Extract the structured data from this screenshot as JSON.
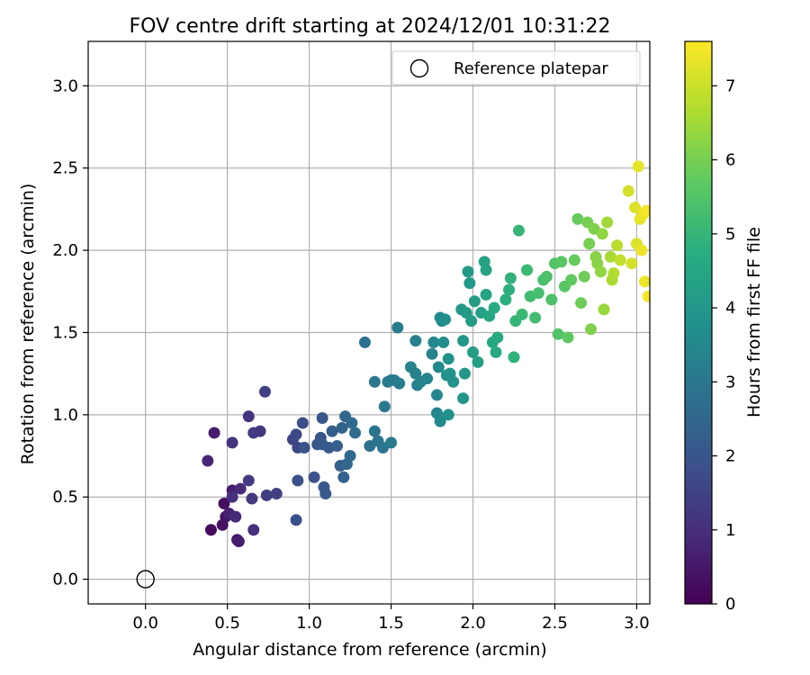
{
  "chart_data": {
    "type": "scatter",
    "title": "FOV centre drift starting at 2024/12/01 10:31:22",
    "xlabel": "Angular distance from reference (arcmin)",
    "ylabel": "Rotation from reference (arcmin)",
    "xlim": [
      -0.35,
      3.08
    ],
    "ylim": [
      -0.15,
      3.27
    ],
    "xticks": [
      "0.0",
      "0.5",
      "1.0",
      "1.5",
      "2.0",
      "2.5",
      "3.0"
    ],
    "yticks": [
      "0.0",
      "0.5",
      "1.0",
      "1.5",
      "2.0",
      "2.5",
      "3.0"
    ],
    "grid": true,
    "legend": {
      "placement": "top-right",
      "entries": [
        "Reference platepar"
      ]
    },
    "reference_point": {
      "name": "Reference platepar",
      "x": 0.0,
      "y": 0.0
    },
    "colorbar": {
      "label": "Hours from first FF file",
      "range": [
        0,
        7.6
      ],
      "ticks": [
        "0",
        "1",
        "2",
        "3",
        "4",
        "5",
        "6",
        "7"
      ],
      "colormap": "viridis"
    },
    "series": [
      {
        "points": [
          [
            0.4,
            0.3,
            0.2
          ],
          [
            0.48,
            0.46,
            0.3
          ],
          [
            0.47,
            0.33,
            0.3
          ],
          [
            0.49,
            0.38,
            0.4
          ],
          [
            0.56,
            0.24,
            0.5
          ],
          [
            0.57,
            0.23,
            0.6
          ],
          [
            0.53,
            0.54,
            0.6
          ],
          [
            0.51,
            0.4,
            0.7
          ],
          [
            0.42,
            0.89,
            0.6
          ],
          [
            0.38,
            0.72,
            0.8
          ],
          [
            0.55,
            0.38,
            0.9
          ],
          [
            0.58,
            0.55,
            0.9
          ],
          [
            0.53,
            0.5,
            1.0
          ],
          [
            0.66,
            0.3,
            1.0
          ],
          [
            0.53,
            0.83,
            1.1
          ],
          [
            0.63,
            0.99,
            1.1
          ],
          [
            0.65,
            0.49,
            1.2
          ],
          [
            0.7,
            0.9,
            1.2
          ],
          [
            0.63,
            0.6,
            1.3
          ],
          [
            0.66,
            0.89,
            1.3
          ],
          [
            0.73,
            1.14,
            1.4
          ],
          [
            0.74,
            0.51,
            1.4
          ],
          [
            0.8,
            0.52,
            1.5
          ],
          [
            0.9,
            0.85,
            1.6
          ],
          [
            0.93,
            0.8,
            1.6
          ],
          [
            0.92,
            0.88,
            1.7
          ],
          [
            0.92,
            0.36,
            1.8
          ],
          [
            0.96,
            0.95,
            1.8
          ],
          [
            0.97,
            0.8,
            1.9
          ],
          [
            0.93,
            0.6,
            1.9
          ],
          [
            1.03,
            0.62,
            1.9
          ],
          [
            1.05,
            0.82,
            2.0
          ],
          [
            1.08,
            0.98,
            2.0
          ],
          [
            1.07,
            0.86,
            2.0
          ],
          [
            1.09,
            0.56,
            2.1
          ],
          [
            1.1,
            0.52,
            2.1
          ],
          [
            1.12,
            0.8,
            2.1
          ],
          [
            1.08,
            0.82,
            2.2
          ],
          [
            1.14,
            0.9,
            2.2
          ],
          [
            1.17,
            0.81,
            2.3
          ],
          [
            1.19,
            0.69,
            2.3
          ],
          [
            1.2,
            0.92,
            2.4
          ],
          [
            1.21,
            0.62,
            2.4
          ],
          [
            1.22,
            0.99,
            2.5
          ],
          [
            1.23,
            0.7,
            2.5
          ],
          [
            1.25,
            0.75,
            2.6
          ],
          [
            1.26,
            0.95,
            2.6
          ],
          [
            1.28,
            0.89,
            2.7
          ],
          [
            1.34,
            1.44,
            2.8
          ],
          [
            1.37,
            0.81,
            2.8
          ],
          [
            1.4,
            0.9,
            2.9
          ],
          [
            1.42,
            0.84,
            2.9
          ],
          [
            1.45,
            0.8,
            2.9
          ],
          [
            1.4,
            1.2,
            3.0
          ],
          [
            1.46,
            1.05,
            3.0
          ],
          [
            1.48,
            1.2,
            3.0
          ],
          [
            1.5,
            1.21,
            3.1
          ],
          [
            1.52,
            1.21,
            3.1
          ],
          [
            1.5,
            0.83,
            3.1
          ],
          [
            1.54,
            1.53,
            3.2
          ],
          [
            1.55,
            1.19,
            3.2
          ],
          [
            1.62,
            1.29,
            3.3
          ],
          [
            1.65,
            1.25,
            3.3
          ],
          [
            1.65,
            1.45,
            3.3
          ],
          [
            1.66,
            1.18,
            3.3
          ],
          [
            1.68,
            1.2,
            3.4
          ],
          [
            1.72,
            1.22,
            3.4
          ],
          [
            1.75,
            1.37,
            3.4
          ],
          [
            1.76,
            1.44,
            3.5
          ],
          [
            1.78,
            1.12,
            3.5
          ],
          [
            1.78,
            1.01,
            3.5
          ],
          [
            1.79,
            1.29,
            3.6
          ],
          [
            1.8,
            1.59,
            3.6
          ],
          [
            1.8,
            0.96,
            3.6
          ],
          [
            1.81,
            1.57,
            3.7
          ],
          [
            1.82,
            1.44,
            3.7
          ],
          [
            1.83,
            1.58,
            3.7
          ],
          [
            1.84,
            1.24,
            3.8
          ],
          [
            1.85,
            1.34,
            3.8
          ],
          [
            1.85,
            1.0,
            3.8
          ],
          [
            1.86,
            1.25,
            3.9
          ],
          [
            1.88,
            1.2,
            3.9
          ],
          [
            1.93,
            1.64,
            4.0
          ],
          [
            1.94,
            1.1,
            4.0
          ],
          [
            1.95,
            1.25,
            4.0
          ],
          [
            1.94,
            1.45,
            4.0
          ],
          [
            1.96,
            1.62,
            4.1
          ],
          [
            1.97,
            1.87,
            4.1
          ],
          [
            1.98,
            1.8,
            4.1
          ],
          [
            1.99,
            1.57,
            4.2
          ],
          [
            2.0,
            1.38,
            4.2
          ],
          [
            2.01,
            1.69,
            4.2
          ],
          [
            2.03,
            1.32,
            4.3
          ],
          [
            2.05,
            1.62,
            4.3
          ],
          [
            2.07,
            1.93,
            4.4
          ],
          [
            2.08,
            1.88,
            4.4
          ],
          [
            2.08,
            1.73,
            4.4
          ],
          [
            2.1,
            1.6,
            4.5
          ],
          [
            2.12,
            1.44,
            4.5
          ],
          [
            2.13,
            1.65,
            4.6
          ],
          [
            2.14,
            1.38,
            4.6
          ],
          [
            2.15,
            1.47,
            4.6
          ],
          [
            2.2,
            1.7,
            4.8
          ],
          [
            2.22,
            1.76,
            4.8
          ],
          [
            2.23,
            1.83,
            4.9
          ],
          [
            2.25,
            1.35,
            4.9
          ],
          [
            2.26,
            1.57,
            5.0
          ],
          [
            2.28,
            2.12,
            5.0
          ],
          [
            2.3,
            1.61,
            5.1
          ],
          [
            2.33,
            1.88,
            5.1
          ],
          [
            2.35,
            1.72,
            5.2
          ],
          [
            2.38,
            1.59,
            5.2
          ],
          [
            2.4,
            1.74,
            5.3
          ],
          [
            2.43,
            1.82,
            5.3
          ],
          [
            2.45,
            1.84,
            5.4
          ],
          [
            2.48,
            1.7,
            5.4
          ],
          [
            2.5,
            1.92,
            5.5
          ],
          [
            2.52,
            1.49,
            5.5
          ],
          [
            2.54,
            1.93,
            5.6
          ],
          [
            2.56,
            1.78,
            5.6
          ],
          [
            2.58,
            1.47,
            5.7
          ],
          [
            2.6,
            1.82,
            5.7
          ],
          [
            2.62,
            1.94,
            5.8
          ],
          [
            2.64,
            2.19,
            5.8
          ],
          [
            2.66,
            1.68,
            5.9
          ],
          [
            2.68,
            1.84,
            5.9
          ],
          [
            2.7,
            2.17,
            6.0
          ],
          [
            2.71,
            2.04,
            6.0
          ],
          [
            2.72,
            1.52,
            6.1
          ],
          [
            2.74,
            2.13,
            6.1
          ],
          [
            2.75,
            1.96,
            6.2
          ],
          [
            2.76,
            1.92,
            6.2
          ],
          [
            2.78,
            1.87,
            6.3
          ],
          [
            2.79,
            2.1,
            6.3
          ],
          [
            2.8,
            1.64,
            6.4
          ],
          [
            2.82,
            2.17,
            6.5
          ],
          [
            2.84,
            1.96,
            6.6
          ],
          [
            2.85,
            1.82,
            6.6
          ],
          [
            2.86,
            1.86,
            6.7
          ],
          [
            2.88,
            2.03,
            6.8
          ],
          [
            2.9,
            1.94,
            6.9
          ],
          [
            2.95,
            2.36,
            7.1
          ],
          [
            2.97,
            1.92,
            7.1
          ],
          [
            2.99,
            2.26,
            7.2
          ],
          [
            3.0,
            2.04,
            7.2
          ],
          [
            3.01,
            2.51,
            7.3
          ],
          [
            3.02,
            2.19,
            7.3
          ],
          [
            3.04,
            2.22,
            7.4
          ],
          [
            3.05,
            1.81,
            7.4
          ],
          [
            3.06,
            2.24,
            7.5
          ],
          [
            3.07,
            1.72,
            7.5
          ],
          [
            3.03,
            2.0,
            7.4
          ]
        ]
      }
    ]
  }
}
